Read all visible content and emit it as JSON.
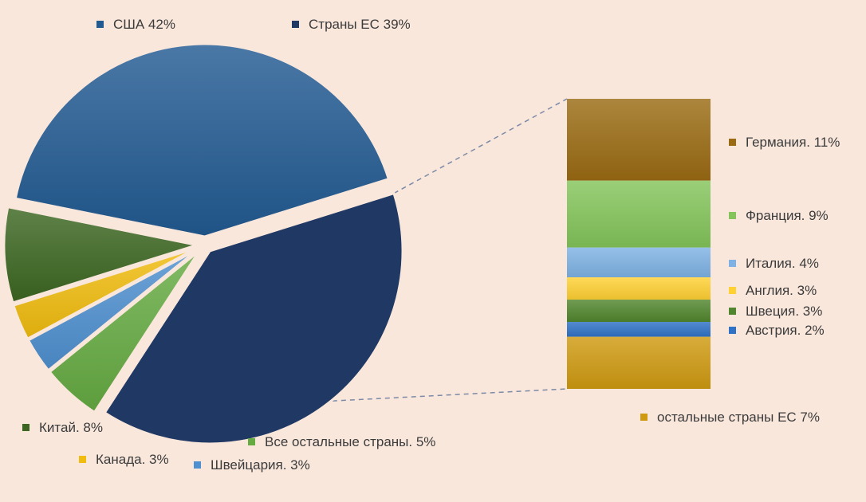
{
  "colors": {
    "background": "#f9e7dc",
    "connector": "#7c8aa6"
  },
  "chart_data": {
    "type": "pie-of-bar",
    "title": "",
    "main_slices": [
      {
        "key": "usa",
        "label": "США 42%",
        "value": 42,
        "color": "#225a92",
        "group": false
      },
      {
        "key": "eu",
        "label": "Страны ЕС 39%",
        "value": 39,
        "color": "#203864",
        "group": true
      },
      {
        "key": "other",
        "label": "Все остальные страны. 5%",
        "value": 5,
        "color": "#65ab42",
        "group": false
      },
      {
        "key": "swiss",
        "label": "Швейцария. 3%",
        "value": 3,
        "color": "#4e90d0",
        "group": false
      },
      {
        "key": "canada",
        "label": "Канада. 3%",
        "value": 3,
        "color": "#f0bc0e",
        "group": false
      },
      {
        "key": "china",
        "label": "Китай. 8%",
        "value": 8,
        "color": "#3c6621",
        "group": false
      }
    ],
    "eu_breakdown": [
      {
        "key": "germany",
        "label": "Германия. 11%",
        "value": 11,
        "color": "#9a6b12"
      },
      {
        "key": "france",
        "label": "Франция. 9%",
        "value": 9,
        "color": "#84c55a"
      },
      {
        "key": "italy",
        "label": "Италия. 4%",
        "value": 4,
        "color": "#7eb2e4"
      },
      {
        "key": "england",
        "label": "Англия. 3%",
        "value": 3,
        "color": "#ffd133"
      },
      {
        "key": "sweden",
        "label": "Швеция. 3%",
        "value": 3,
        "color": "#50862d"
      },
      {
        "key": "austria",
        "label": "Австрия. 2%",
        "value": 2,
        "color": "#2f72c6"
      },
      {
        "key": "rest_eu",
        "label": "остальные страны ЕС 7%",
        "value": 7,
        "color": "#cf9a10"
      }
    ]
  }
}
